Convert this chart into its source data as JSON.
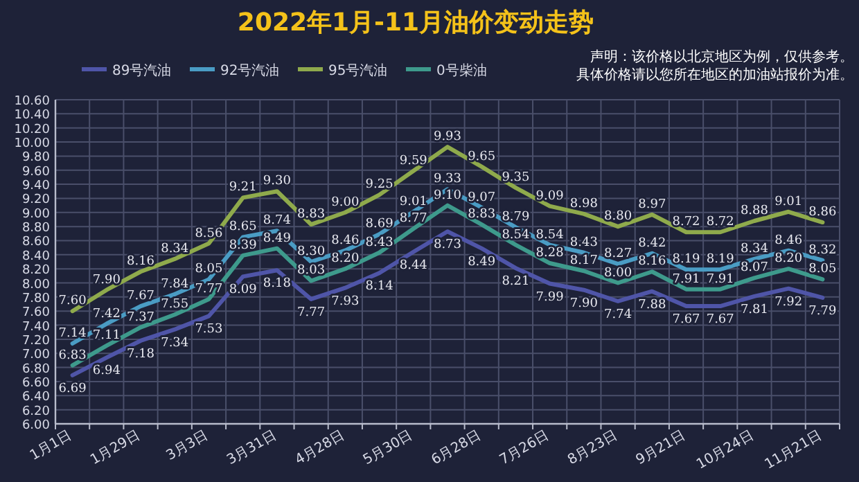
{
  "chart_data": {
    "type": "line",
    "title": "2022年1月-11月油价变动走势",
    "categories": [
      "1月1日",
      null,
      "1月29日",
      null,
      "3月3日",
      null,
      "3月31日",
      null,
      "4月28日",
      null,
      "5月30日",
      null,
      "6月28日",
      null,
      "7月26日",
      null,
      "8月23日",
      null,
      "9月21日",
      null,
      "10月24日",
      null,
      "11月21日"
    ],
    "series": [
      {
        "name": "89号汽油",
        "color": "#4f55a8",
        "values": [
          6.69,
          6.94,
          7.18,
          7.34,
          7.53,
          8.09,
          8.18,
          7.77,
          7.93,
          8.14,
          8.44,
          8.73,
          8.49,
          8.21,
          7.99,
          7.9,
          7.74,
          7.88,
          7.67,
          7.67,
          7.81,
          7.92,
          7.79
        ],
        "value_labels": [
          "6.69",
          "6.94",
          "7.18",
          "7.34",
          "7.53",
          "8.09",
          "8.18",
          "7.77",
          "7.93",
          "8.14",
          "8.44",
          "8.73",
          "8.49",
          "8.21",
          "7.99",
          "7.90",
          "7.74",
          "7.88",
          "7.67",
          "7.67",
          "7.81",
          "7.92",
          "7.79"
        ]
      },
      {
        "name": "92号汽油",
        "color": "#4a9cc4",
        "values": [
          7.14,
          7.42,
          7.67,
          7.84,
          8.05,
          8.65,
          8.74,
          8.3,
          8.46,
          8.69,
          9.01,
          9.33,
          9.07,
          8.79,
          8.54,
          8.43,
          8.27,
          8.42,
          8.19,
          8.19,
          8.34,
          8.46,
          8.32
        ],
        "value_labels": [
          "7.14",
          "7.42",
          "7.67",
          "7.84",
          "8.05",
          "8.65",
          "8.74",
          "8.30",
          "8.46",
          "8.69",
          "9.01",
          "9.33",
          "9.07",
          "8.79",
          "8.54",
          "8.43",
          "8.27",
          "8.42",
          "8.19",
          "8.19",
          "8.34",
          "8.46",
          "8.32"
        ]
      },
      {
        "name": "95号汽油",
        "color": "#8faa4c",
        "values": [
          7.6,
          7.9,
          8.16,
          8.34,
          8.56,
          9.21,
          9.3,
          8.83,
          9.0,
          9.25,
          9.59,
          9.93,
          9.65,
          9.35,
          9.09,
          8.98,
          8.8,
          8.97,
          8.72,
          8.72,
          8.88,
          9.01,
          8.86
        ],
        "value_labels": [
          "7.60",
          "7.90",
          "8.16",
          "8.34",
          "8.56",
          "9.21",
          "9.30",
          "8.83",
          "9.00",
          "9.25",
          "9.59",
          "9.93",
          "9.65",
          "9.35",
          "9.09",
          "8.98",
          "8.80",
          "8.97",
          "8.72",
          "8.72",
          "8.88",
          "9.01",
          "8.86"
        ]
      },
      {
        "name": "0号柴油",
        "color": "#3e9a8c",
        "values": [
          6.83,
          7.11,
          7.37,
          7.55,
          7.77,
          8.39,
          8.49,
          8.03,
          8.2,
          8.43,
          8.77,
          9.1,
          8.83,
          8.54,
          8.28,
          8.17,
          8.0,
          8.16,
          7.91,
          7.91,
          8.07,
          8.2,
          8.05
        ],
        "value_labels": [
          "6.83",
          "7.11",
          "7.37",
          "7.55",
          "7.77",
          "8.39",
          "8.49",
          "8.03",
          "8.20",
          "8.43",
          "8.77",
          "9.10",
          "8.83",
          "8.54",
          "8.28",
          "8.17",
          "8.00",
          "8.16",
          "7.91",
          "7.91",
          "8.07",
          "8.20",
          "8.05"
        ]
      }
    ],
    "ylim": [
      6,
      10.6
    ],
    "yticks": [
      {
        "value": 6,
        "label": "6.00"
      },
      {
        "value": 6.2,
        "label": "6.20"
      },
      {
        "value": 6.4,
        "label": "6.40"
      },
      {
        "value": 6.6,
        "label": "6.60"
      },
      {
        "value": 6.8,
        "label": "6.80"
      },
      {
        "value": 7,
        "label": "7.00"
      },
      {
        "value": 7.2,
        "label": "7.20"
      },
      {
        "value": 7.4,
        "label": "7.40"
      },
      {
        "value": 7.6,
        "label": "7.60"
      },
      {
        "value": 7.8,
        "label": "7.80"
      },
      {
        "value": 8,
        "label": "8.00"
      },
      {
        "value": 8.2,
        "label": "8.20"
      },
      {
        "value": 8.4,
        "label": "8.40"
      },
      {
        "value": 8.6,
        "label": "8.60"
      },
      {
        "value": 8.8,
        "label": "8.80"
      },
      {
        "value": 9,
        "label": "9.00"
      },
      {
        "value": 9.2,
        "label": "9.20"
      },
      {
        "value": 9.4,
        "label": "9.40"
      },
      {
        "value": 9.6,
        "label": "9.60"
      },
      {
        "value": 9.8,
        "label": "9.80"
      },
      {
        "value": 10,
        "label": "10.00"
      },
      {
        "value": 10.2,
        "label": "10.20"
      },
      {
        "value": 10.4,
        "label": "10.40"
      },
      {
        "value": 10.6,
        "label": "10.60"
      }
    ],
    "annotations": [
      "声明：该价格以北京地区为例，仅供参考。",
      "具体价格请以您所在地区的加油站报价为准。"
    ],
    "grid": true,
    "legend": "top",
    "marker": "none",
    "line_style": "solid"
  }
}
